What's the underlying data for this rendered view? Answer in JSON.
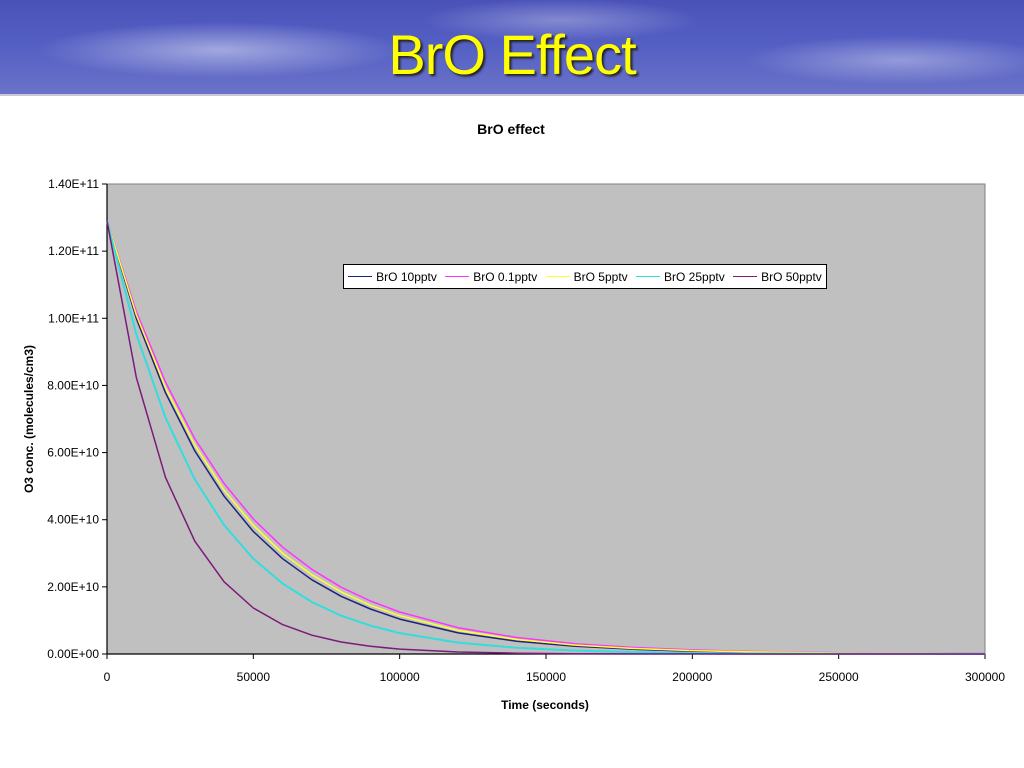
{
  "slide": {
    "title": "BrO Effect"
  },
  "chart_data": {
    "type": "line",
    "title": "BrO effect",
    "xlabel": "Time (seconds)",
    "ylabel": "O3 conc. (molecules/cm3)",
    "xlim": [
      0,
      300000
    ],
    "ylim": [
      0,
      140000000000.0
    ],
    "xticks": [
      "0",
      "50000",
      "100000",
      "150000",
      "200000",
      "250000",
      "300000"
    ],
    "yticks": [
      "0.00E+00",
      "2.00E+10",
      "4.00E+10",
      "6.00E+10",
      "8.00E+10",
      "1.00E+11",
      "1.20E+11",
      "1.40E+11"
    ],
    "plot_background": "#c0c0c0",
    "grid": false,
    "legend_position": "inside-top-right",
    "x": [
      0,
      10000,
      20000,
      30000,
      40000,
      50000,
      60000,
      70000,
      80000,
      90000,
      100000,
      120000,
      140000,
      160000,
      180000,
      200000,
      220000,
      250000,
      300000
    ],
    "series": [
      {
        "name": "BrO 10pptv",
        "color": "#1a237e",
        "values": [
          129000000000.0,
          100000000000.0,
          77800000000.0,
          60500000000.0,
          47000000000.0,
          36500000000.0,
          28400000000.0,
          22100000000.0,
          17200000000.0,
          13400000000.0,
          10400000000.0,
          6280000000.0,
          3800000000.0,
          2290000000.0,
          1390000000.0,
          837000000.0,
          506000000.0,
          237000000.0,
          65000000.0
        ]
      },
      {
        "name": "BrO 0.1pptv",
        "color": "#ff33ff",
        "values": [
          129000000000.0,
          102000000000.0,
          81000000000.0,
          64100000000.0,
          50800000000.0,
          40200000000.0,
          31800000000.0,
          25200000000.0,
          19900000000.0,
          15800000000.0,
          12500000000.0,
          7840000000.0,
          4910000000.0,
          3080000000.0,
          1930000000.0,
          1210000000.0,
          757000000.0,
          376000000.0,
          110000000.0
        ]
      },
      {
        "name": "BrO 5pptv",
        "color": "#ffff33",
        "values": [
          129000000000.0,
          101000000000.0,
          79300000000.0,
          62200000000.0,
          48800000000.0,
          38300000000.0,
          30000000000.0,
          23600000000.0,
          18500000000.0,
          14500000000.0,
          11400000000.0,
          7010000000.0,
          4310000000.0,
          2650000000.0,
          1630000000.0,
          1000000000.0,
          617000000.0,
          296000000.0,
          84000000.0
        ]
      },
      {
        "name": "BrO 25pptv",
        "color": "#33dddd",
        "values": [
          129000000000.0,
          95300000000.0,
          70400000000.0,
          52000000000.0,
          38400000000.0,
          28400000000.0,
          21000000000.0,
          15500000000.0,
          11400000000.0,
          8450000000.0,
          6240000000.0,
          3410000000.0,
          1860000000.0,
          1020000000.0,
          555000000.0,
          303000000.0,
          165000000.0,
          67000000.0,
          13000000.0
        ]
      },
      {
        "name": "BrO 50pptv",
        "color": "#7b1a7b",
        "values": [
          129000000000.0,
          82400000000.0,
          52600000000.0,
          33600000000.0,
          21500000000.0,
          13700000000.0,
          8750000000.0,
          5590000000.0,
          3570000000.0,
          2280000000.0,
          1460000000.0,
          594000000.0,
          242000000.0,
          99000000.0,
          40000000.0,
          16000000.0,
          7000000.0,
          1000000.0,
          100000.0
        ]
      }
    ]
  }
}
